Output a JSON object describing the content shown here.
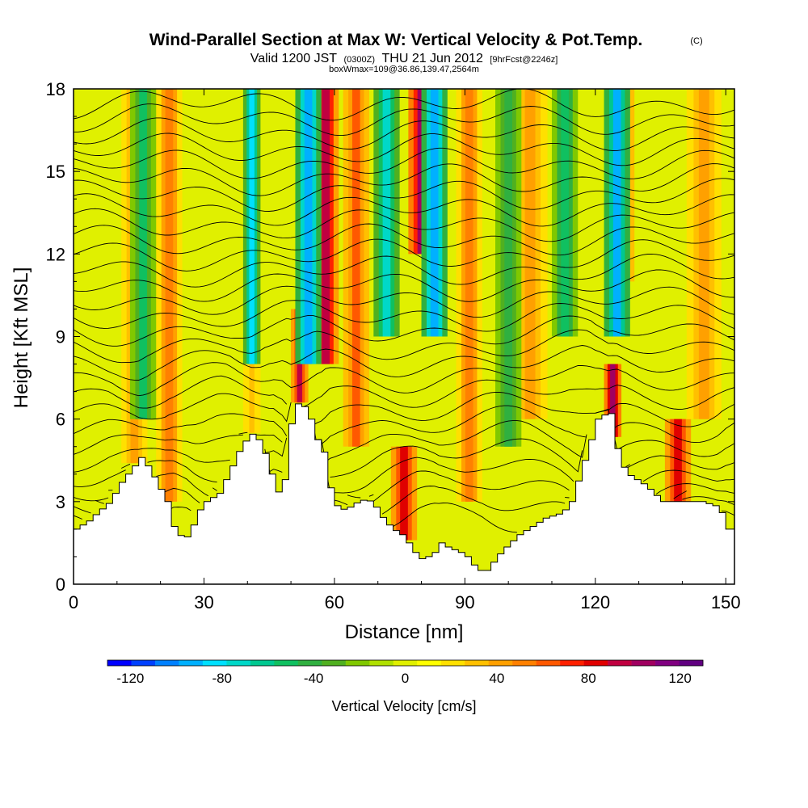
{
  "chart_data": {
    "type": "heatmap",
    "title": "Wind-Parallel Section at Max W: Vertical Velocity & Pot.Temp.",
    "copyright": "(C)",
    "subtitle_valid": "Valid 1200 JST",
    "subtitle_z": "(0300Z)",
    "subtitle_date": "THU 21 Jun 2012",
    "subtitle_fcst": "[9hrFcst@2246z]",
    "subtitle_box": "boxWmax=109@36.86,139.47,2564m",
    "xlabel": "Distance [nm]",
    "ylabel": "Height [Kft MSL]",
    "xlim": [
      0,
      152
    ],
    "ylim": [
      0,
      18
    ],
    "x_ticks": [
      "0",
      "30",
      "60",
      "90",
      "120",
      "150"
    ],
    "y_ticks": [
      "0",
      "3",
      "6",
      "9",
      "12",
      "15",
      "18"
    ],
    "colorbar_label": "Vertical Velocity [cm/s]",
    "colorbar_ticks": [
      "-120",
      "-80",
      "-40",
      "0",
      "40",
      "80",
      "120"
    ],
    "colorbar_range": [
      -130,
      130
    ],
    "colorbar_colors": [
      "#0000ff",
      "#0040ff",
      "#0080ff",
      "#00b0ff",
      "#00e0ff",
      "#00d8c8",
      "#00c890",
      "#10c060",
      "#30b040",
      "#50b020",
      "#80c800",
      "#b0e000",
      "#e0f000",
      "#ffff00",
      "#ffe000",
      "#ffc000",
      "#ffa000",
      "#ff8000",
      "#ff5800",
      "#ff2000",
      "#e00000",
      "#c00040",
      "#a00060",
      "#800080",
      "#600080"
    ],
    "terrain_top_kft": [
      [
        0,
        2.0
      ],
      [
        3,
        2.3
      ],
      [
        5,
        2.6
      ],
      [
        8,
        3.0
      ],
      [
        10,
        3.6
      ],
      [
        12,
        4.0
      ],
      [
        15,
        4.6
      ],
      [
        17,
        4.2
      ],
      [
        19,
        3.6
      ],
      [
        21,
        3.0
      ],
      [
        23,
        1.8
      ],
      [
        26,
        1.7
      ],
      [
        28,
        2.6
      ],
      [
        30,
        3.0
      ],
      [
        33,
        3.3
      ],
      [
        36,
        4.3
      ],
      [
        38,
        5.0
      ],
      [
        40,
        5.4
      ],
      [
        41,
        5.5
      ],
      [
        43,
        5.0
      ],
      [
        45,
        4.0
      ],
      [
        46,
        3.2
      ],
      [
        48,
        3.8
      ],
      [
        50,
        6.5
      ],
      [
        52,
        6.6
      ],
      [
        54,
        6.0
      ],
      [
        55,
        5.5
      ],
      [
        56,
        5.0
      ],
      [
        57,
        4.8
      ],
      [
        58,
        4.0
      ],
      [
        59,
        3.0
      ],
      [
        61,
        2.7
      ],
      [
        63,
        2.8
      ],
      [
        65,
        3.0
      ],
      [
        67,
        3.1
      ],
      [
        69,
        2.8
      ],
      [
        71,
        2.3
      ],
      [
        73,
        2.0
      ],
      [
        75,
        1.8
      ],
      [
        77,
        1.4
      ],
      [
        79,
        0.9
      ],
      [
        81,
        1.0
      ],
      [
        83,
        1.2
      ],
      [
        84,
        1.5
      ],
      [
        86,
        1.3
      ],
      [
        88,
        1.2
      ],
      [
        90,
        1.0
      ],
      [
        92,
        0.6
      ],
      [
        94,
        0.4
      ],
      [
        96,
        0.8
      ],
      [
        98,
        1.2
      ],
      [
        100,
        1.5
      ],
      [
        102,
        1.8
      ],
      [
        104,
        2.0
      ],
      [
        106,
        2.2
      ],
      [
        108,
        2.4
      ],
      [
        110,
        2.5
      ],
      [
        112,
        2.6
      ],
      [
        114,
        3.0
      ],
      [
        116,
        4.0
      ],
      [
        118,
        5.0
      ],
      [
        120,
        6.0
      ],
      [
        122,
        6.2
      ],
      [
        123,
        6.2
      ],
      [
        125,
        4.5
      ],
      [
        127,
        4.0
      ],
      [
        129,
        3.8
      ],
      [
        131,
        3.6
      ],
      [
        133,
        3.3
      ],
      [
        135,
        3.0
      ],
      [
        137,
        3.0
      ],
      [
        139,
        3.0
      ],
      [
        141,
        3.0
      ],
      [
        144,
        3.0
      ],
      [
        146,
        2.9
      ],
      [
        148,
        2.8
      ],
      [
        150,
        2.0
      ],
      [
        152,
        2.0
      ]
    ],
    "updraft_cores": [
      {
        "x": 14,
        "w": 3,
        "z0": 0,
        "z1": 18,
        "w_cms": 45
      },
      {
        "x": 22,
        "w": 3,
        "z0": 3,
        "z1": 18,
        "w_cms": 55
      },
      {
        "x": 41,
        "w": 2,
        "z0": 3,
        "z1": 18,
        "w_cms": 35
      },
      {
        "x": 52,
        "w": 2,
        "z0": 4,
        "z1": 10,
        "w_cms": 90
      },
      {
        "x": 58,
        "w": 3,
        "z0": 8,
        "z1": 18,
        "w_cms": 95
      },
      {
        "x": 65,
        "w": 3,
        "z0": 5,
        "z1": 18,
        "w_cms": 60
      },
      {
        "x": 76,
        "w": 3,
        "z0": 1,
        "z1": 5,
        "w_cms": 85
      },
      {
        "x": 80,
        "w": 3,
        "z0": 12,
        "z1": 18,
        "w_cms": 105
      },
      {
        "x": 91,
        "w": 3,
        "z0": 3,
        "z1": 18,
        "w_cms": 55
      },
      {
        "x": 105,
        "w": 4,
        "z0": 6,
        "z1": 18,
        "w_cms": 45
      },
      {
        "x": 124,
        "w": 2,
        "z0": 4,
        "z1": 8,
        "w_cms": 109
      },
      {
        "x": 126,
        "w": 3,
        "z0": 11,
        "z1": 18,
        "w_cms": 75
      },
      {
        "x": 139,
        "w": 3,
        "z0": 3,
        "z1": 6,
        "w_cms": 85
      },
      {
        "x": 145,
        "w": 4,
        "z0": 6,
        "z1": 18,
        "w_cms": 40
      }
    ],
    "downdraft_cores": [
      {
        "x": 16,
        "w": 3,
        "z0": 6,
        "z1": 18,
        "w_cms": -50
      },
      {
        "x": 41,
        "w": 2,
        "z0": 8,
        "z1": 18,
        "w_cms": -80
      },
      {
        "x": 54,
        "w": 3,
        "z0": 8,
        "z1": 18,
        "w_cms": -95
      },
      {
        "x": 72,
        "w": 3,
        "z0": 9,
        "z1": 18,
        "w_cms": -75
      },
      {
        "x": 83,
        "w": 3,
        "z0": 9,
        "z1": 18,
        "w_cms": -95
      },
      {
        "x": 100,
        "w": 3,
        "z0": 5,
        "z1": 18,
        "w_cms": -45
      },
      {
        "x": 113,
        "w": 3,
        "z0": 9,
        "z1": 18,
        "w_cms": -55
      },
      {
        "x": 125,
        "w": 3,
        "z0": 9,
        "z1": 18,
        "w_cms": -90
      }
    ]
  }
}
